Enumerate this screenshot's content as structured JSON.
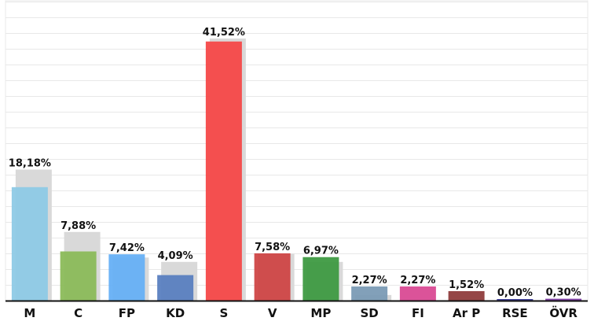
{
  "chart_data": {
    "type": "bar",
    "categories": [
      "M",
      "C",
      "FP",
      "KD",
      "S",
      "V",
      "MP",
      "SD",
      "FI",
      "Ar P",
      "RSE",
      "ÖVR"
    ],
    "value_labels": [
      "18,18%",
      "7,88%",
      "7,42%",
      "4,09%",
      "41,52%",
      "7,58%",
      "6,97%",
      "2,27%",
      "2,27%",
      "1,52%",
      "0,00%",
      "0,30%"
    ],
    "series": [
      {
        "values": [
          18.18,
          7.88,
          7.42,
          4.09,
          41.52,
          7.58,
          6.97,
          2.27,
          2.27,
          1.52,
          0.0,
          0.3
        ],
        "colors": [
          "#8ecae6",
          "#8bbb5a",
          "#66b0f5",
          "#5a80c0",
          "#f54848",
          "#cf4646",
          "#3e9a42",
          "#7b9bb5",
          "#d94a94",
          "#8f3c3c",
          "#3a3a9a",
          "#7d3aa5"
        ]
      },
      {
        "values": [
          21.0,
          11.0,
          6.9,
          6.2,
          42.0,
          7.5,
          6.2,
          0.9,
          0.0,
          0.0,
          0.0,
          0.0
        ],
        "color": "#d9d9d9"
      }
    ],
    "ylim": [
      0,
      45
    ],
    "grid": true,
    "legend": "none"
  }
}
